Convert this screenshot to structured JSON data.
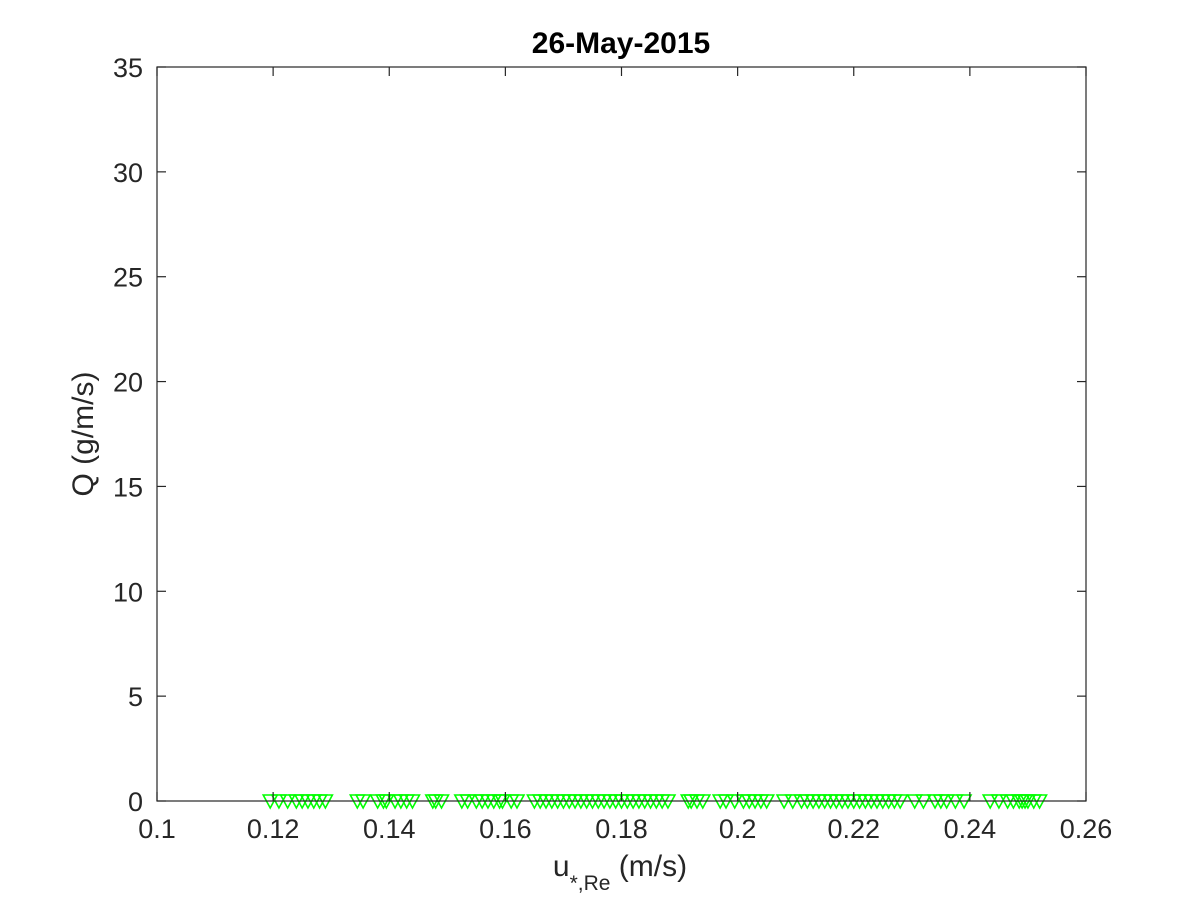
{
  "chart_data": {
    "type": "scatter",
    "title": "26-May-2015",
    "xlabel": "u",
    "xlabel_subscript": "*,Re",
    "xlabel_units": " (m/s)",
    "ylabel": "Q (g/m/s)",
    "xlim": [
      0.1,
      0.26
    ],
    "ylim": [
      0,
      35
    ],
    "xticks": [
      0.1,
      0.12,
      0.14,
      0.16,
      0.18,
      0.2,
      0.22,
      0.24,
      0.26
    ],
    "xtick_labels": [
      "0.1",
      "0.12",
      "0.14",
      "0.16",
      "0.18",
      "0.2",
      "0.22",
      "0.24",
      "0.26"
    ],
    "yticks": [
      0,
      5,
      10,
      15,
      20,
      25,
      30,
      35
    ],
    "ytick_labels": [
      "0",
      "5",
      "10",
      "15",
      "20",
      "25",
      "30",
      "35"
    ],
    "grid": false,
    "marker": "downward-triangle",
    "marker_color": "#00ff00",
    "series": [
      {
        "x": [
          0.1195,
          0.121,
          0.1225,
          0.124,
          0.125,
          0.126,
          0.127,
          0.128,
          0.129,
          0.1345,
          0.1355,
          0.138,
          0.139,
          0.1395,
          0.141,
          0.142,
          0.143,
          0.144,
          0.1475,
          0.148,
          0.149,
          0.1525,
          0.1535,
          0.155,
          0.156,
          0.157,
          0.158,
          0.159,
          0.1595,
          0.161,
          0.162,
          0.165,
          0.166,
          0.167,
          0.168,
          0.169,
          0.17,
          0.171,
          0.172,
          0.173,
          0.174,
          0.175,
          0.176,
          0.177,
          0.178,
          0.179,
          0.18,
          0.181,
          0.182,
          0.183,
          0.184,
          0.185,
          0.186,
          0.187,
          0.188,
          0.1915,
          0.192,
          0.193,
          0.194,
          0.197,
          0.198,
          0.1995,
          0.201,
          0.202,
          0.203,
          0.204,
          0.205,
          0.208,
          0.2095,
          0.211,
          0.212,
          0.213,
          0.214,
          0.215,
          0.216,
          0.217,
          0.218,
          0.219,
          0.22,
          0.221,
          0.222,
          0.223,
          0.224,
          0.225,
          0.226,
          0.227,
          0.228,
          0.2305,
          0.232,
          0.234,
          0.235,
          0.236,
          0.2375,
          0.239,
          0.2435,
          0.245,
          0.2465,
          0.2475,
          0.2485,
          0.249,
          0.2495,
          0.25,
          0.251,
          0.252
        ],
        "y": [
          0,
          0,
          0,
          0,
          0,
          0,
          0,
          0,
          0,
          0,
          0,
          0,
          0,
          0,
          0,
          0,
          0,
          0,
          0,
          0,
          0,
          0,
          0,
          0,
          0,
          0,
          0,
          0,
          0,
          0,
          0,
          0,
          0,
          0,
          0,
          0,
          0,
          0,
          0,
          0,
          0,
          0,
          0,
          0,
          0,
          0,
          0,
          0,
          0,
          0,
          0,
          0,
          0,
          0,
          0,
          0,
          0,
          0,
          0,
          0,
          0,
          0,
          0,
          0,
          0,
          0,
          0,
          0,
          0,
          0,
          0,
          0,
          0,
          0,
          0,
          0,
          0,
          0,
          0,
          0,
          0,
          0,
          0,
          0,
          0,
          0,
          0,
          0,
          0,
          0,
          0,
          0,
          0,
          0,
          0,
          0,
          0,
          0,
          0,
          0,
          0,
          0,
          0,
          0
        ]
      }
    ]
  }
}
